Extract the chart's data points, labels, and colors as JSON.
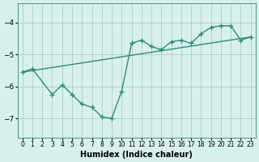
{
  "title": "",
  "xlabel": "Humidex (Indice chaleur)",
  "ylabel": "",
  "bg_color": "#d8f0ec",
  "line_color": "#2e8b7a",
  "xlim": [
    -0.5,
    23.5
  ],
  "ylim": [
    -7.6,
    -3.4
  ],
  "xticks": [
    0,
    1,
    2,
    3,
    4,
    5,
    6,
    7,
    8,
    9,
    10,
    11,
    12,
    13,
    14,
    15,
    16,
    17,
    18,
    19,
    20,
    21,
    22,
    23
  ],
  "yticks": [
    -7,
    -6,
    -5,
    -4
  ],
  "scatter_x": [
    0,
    1,
    3,
    4,
    5,
    6,
    7,
    8,
    9,
    10,
    11,
    12,
    13,
    14,
    15,
    16,
    17,
    18,
    19,
    20,
    21,
    22,
    23
  ],
  "scatter_y": [
    -5.55,
    -5.45,
    -6.25,
    -5.95,
    -6.25,
    -6.55,
    -6.65,
    -6.95,
    -7.0,
    -6.15,
    -4.65,
    -4.55,
    -4.75,
    -4.85,
    -4.6,
    -4.55,
    -4.65,
    -4.35,
    -4.15,
    -4.1,
    -4.1,
    -4.55,
    -4.45
  ],
  "trend_x": [
    0,
    23
  ],
  "trend_y": [
    -5.55,
    -4.45
  ]
}
